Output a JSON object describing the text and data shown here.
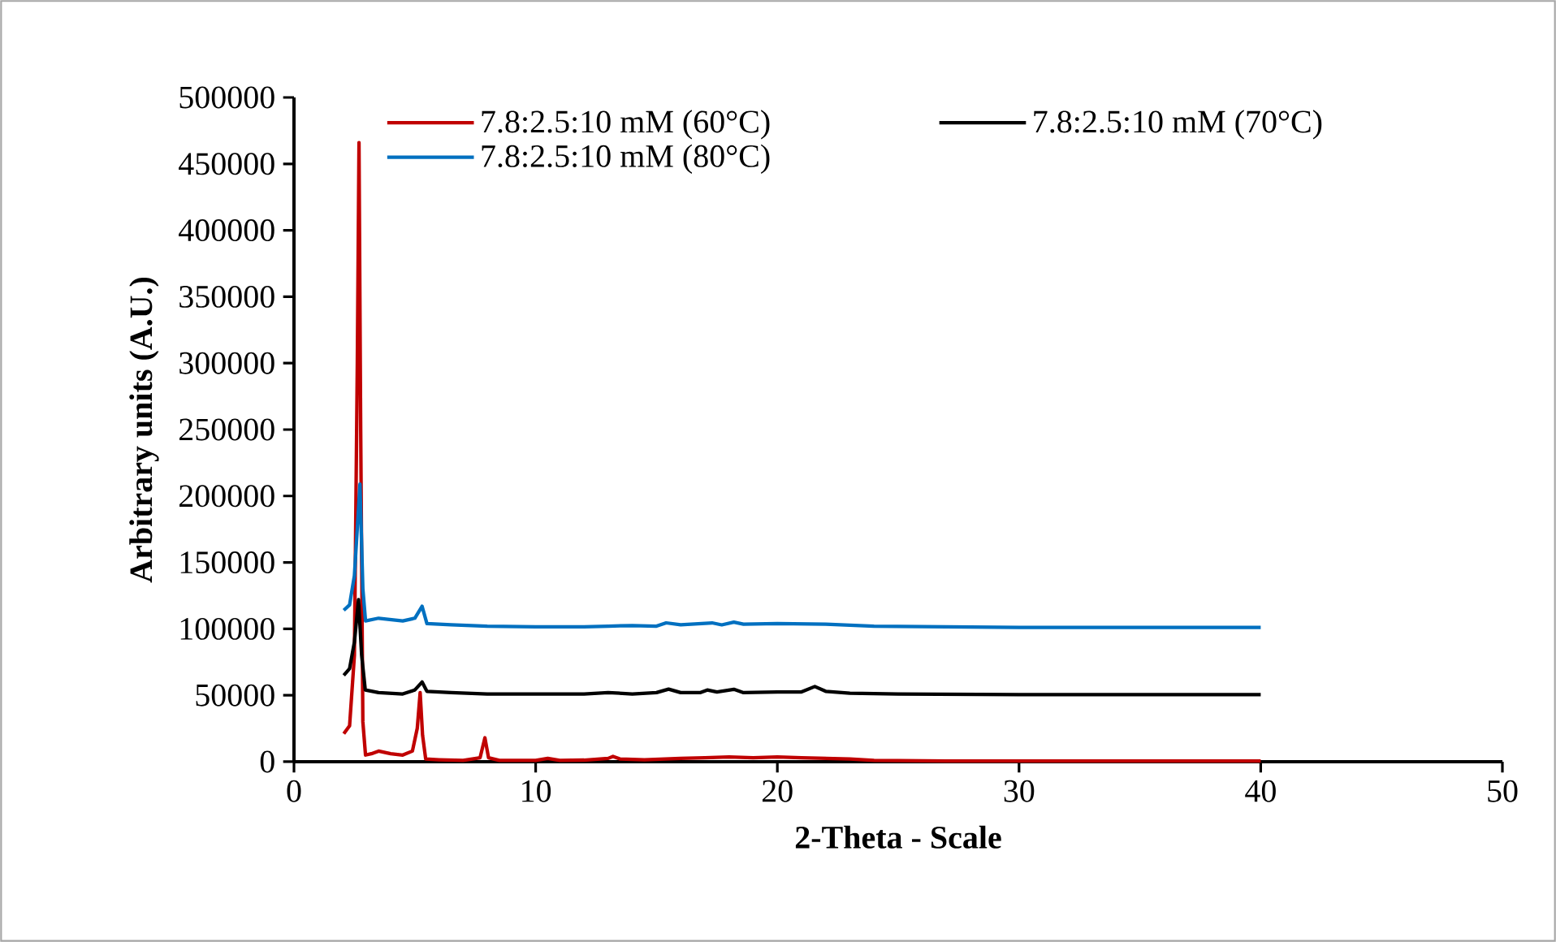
{
  "chart_data": {
    "type": "line",
    "xlabel": "2-Theta - Scale",
    "ylabel": "Arbitrary units (A.U.)",
    "xlim": [
      0,
      50
    ],
    "xticks": [
      0,
      10,
      20,
      30,
      40,
      50
    ],
    "ylim": [
      0,
      500000
    ],
    "yticks": [
      0,
      50000,
      100000,
      150000,
      200000,
      250000,
      300000,
      350000,
      400000,
      450000,
      500000
    ],
    "legend": "top",
    "marker": "none",
    "line_style": "solid",
    "series": [
      {
        "name": "7.8:2.5:10 mM (60°C)",
        "color": "#c00000",
        "x": [
          2.06,
          2.3,
          2.5,
          2.62,
          2.69,
          2.76,
          2.85,
          2.96,
          3.2,
          3.5,
          4.0,
          4.5,
          4.9,
          5.1,
          5.22,
          5.32,
          5.45,
          6,
          7,
          7.7,
          7.9,
          8.05,
          8.5,
          10,
          10.5,
          11,
          12,
          13,
          13.2,
          13.5,
          14.5,
          16,
          17,
          18,
          19,
          20,
          21,
          22,
          23,
          24,
          27,
          30,
          35,
          40
        ],
        "values": [
          21000,
          27000,
          80000,
          300000,
          466000,
          250000,
          30000,
          5000,
          6000,
          8000,
          6000,
          5000,
          8000,
          25000,
          52000,
          20000,
          2000,
          1500,
          1000,
          3000,
          18000,
          3000,
          1000,
          1000,
          2500,
          1000,
          1200,
          2500,
          4000,
          2000,
          1500,
          2500,
          3000,
          3500,
          3000,
          3500,
          3000,
          2500,
          2000,
          1000,
          500,
          500,
          500,
          500
        ]
      },
      {
        "name": "7.8:2.5:10 mM (70°C)",
        "color": "#000000",
        "x": [
          2.06,
          2.3,
          2.5,
          2.67,
          2.8,
          2.95,
          3.5,
          4.5,
          5.0,
          5.3,
          5.5,
          6.5,
          8,
          10,
          12,
          13,
          14,
          15,
          15.5,
          16,
          16.8,
          17.1,
          17.5,
          18.2,
          18.6,
          20,
          21,
          21.55,
          22,
          23,
          25,
          30,
          35,
          40
        ],
        "values": [
          65000,
          70000,
          90000,
          122000,
          80000,
          54000,
          52000,
          51000,
          54000,
          60000,
          53000,
          52000,
          51000,
          51000,
          51000,
          52000,
          51000,
          52000,
          54600,
          52000,
          52000,
          54000,
          52500,
          54500,
          52000,
          52500,
          52500,
          56600,
          53000,
          51500,
          51000,
          50500,
          50500,
          50500
        ]
      },
      {
        "name": "7.8:2.5:10 mM (80°C)",
        "color": "#0070c0",
        "x": [
          2.06,
          2.3,
          2.5,
          2.73,
          2.85,
          2.96,
          3.5,
          4.5,
          5.0,
          5.3,
          5.5,
          6.5,
          8,
          10,
          12,
          13,
          14,
          15,
          15.4,
          16,
          17.3,
          17.7,
          18.2,
          18.6,
          20,
          22,
          24,
          27,
          30,
          35,
          40
        ],
        "values": [
          114000,
          118000,
          140000,
          209000,
          130000,
          106000,
          108000,
          106000,
          108000,
          117000,
          104000,
          103000,
          102000,
          101500,
          101500,
          102000,
          102500,
          102000,
          104500,
          103000,
          104500,
          103000,
          105000,
          103500,
          104000,
          103500,
          102000,
          101500,
          101000,
          101000,
          101000
        ]
      }
    ]
  }
}
